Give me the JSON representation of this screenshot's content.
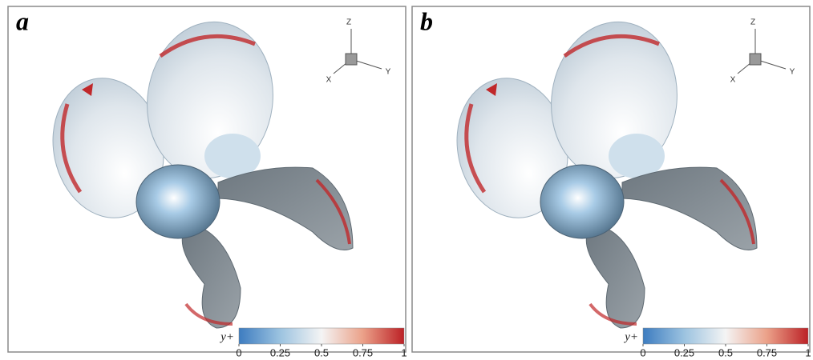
{
  "panels": [
    {
      "label": "a",
      "triad": {
        "z": "Z",
        "x": "X",
        "y": "Y"
      },
      "colorbar": {
        "label": "y+",
        "lim": [
          0,
          1
        ],
        "ticks": [
          0,
          0.25,
          0.5,
          0.75,
          1
        ]
      }
    },
    {
      "label": "b",
      "triad": {
        "z": "Z",
        "x": "X",
        "y": "Y"
      },
      "colorbar": {
        "label": "y+",
        "lim": [
          0,
          1
        ],
        "ticks": [
          0,
          0.25,
          0.5,
          0.75,
          1
        ]
      }
    }
  ]
}
